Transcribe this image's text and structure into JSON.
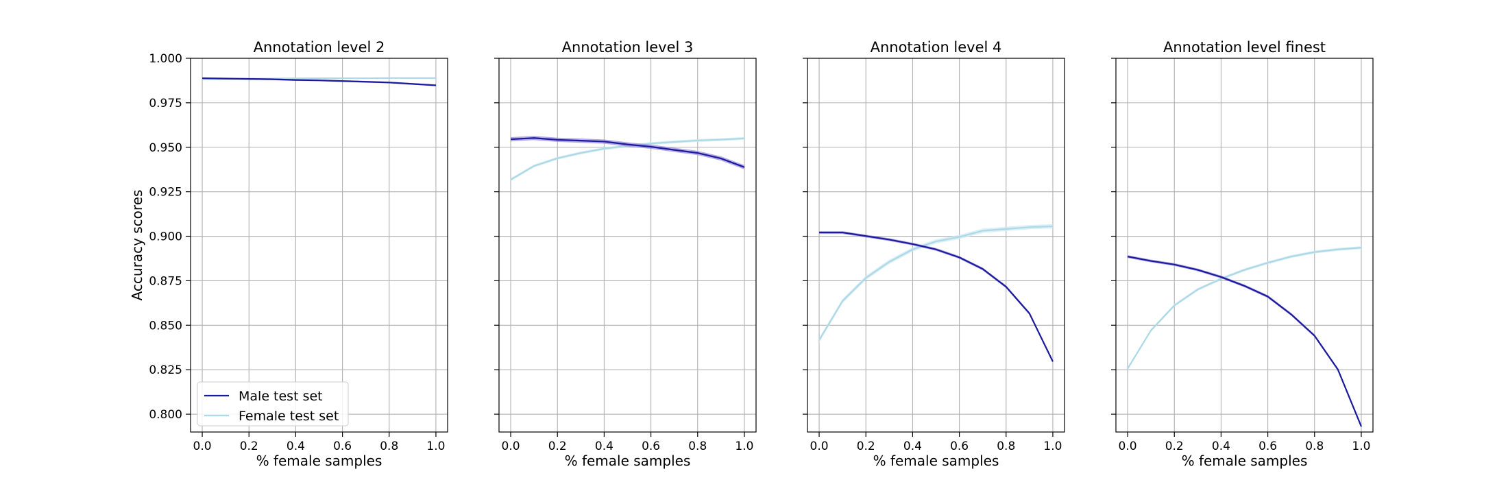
{
  "chart_data": {
    "type": "line",
    "ylabel": "Accuracy scores",
    "xlabel": "% female samples",
    "ylim": [
      0.79,
      1.0
    ],
    "xlim": [
      -0.05,
      1.05
    ],
    "x_ticks": [
      "0.0",
      "0.2",
      "0.4",
      "0.6",
      "0.8",
      "1.0"
    ],
    "y_ticks": [
      "0.800",
      "0.825",
      "0.850",
      "0.875",
      "0.900",
      "0.925",
      "0.950",
      "0.975",
      "1.000"
    ],
    "grid": true,
    "shared_y": true,
    "legend": {
      "placement": "lower-left of first panel",
      "entries": [
        "Male test set",
        "Female test set"
      ]
    },
    "series_colors": {
      "Male test set": "#1a1a9c",
      "Female test set": "#add8e6"
    },
    "band_colors": {
      "Male test set": "#9f8fdd",
      "Female test set": "#cfe9f3"
    },
    "x": [
      0.0,
      0.1,
      0.2,
      0.3,
      0.4,
      0.5,
      0.6,
      0.7,
      0.8,
      0.9,
      1.0
    ],
    "panels": [
      {
        "title": "Annotation level 2",
        "series": [
          {
            "name": "Male test set",
            "values": [
              0.9888,
              0.9886,
              0.9884,
              0.9882,
              0.9878,
              0.9876,
              0.9872,
              0.9868,
              0.9864,
              0.9856,
              0.9848
            ],
            "band": 0.0005
          },
          {
            "name": "Female test set",
            "values": [
              0.9882,
              0.9884,
              0.9885,
              0.9886,
              0.9887,
              0.9888,
              0.9888,
              0.9888,
              0.9889,
              0.9889,
              0.9889
            ],
            "band": 0.0004
          }
        ]
      },
      {
        "title": "Annotation level 3",
        "series": [
          {
            "name": "Male test set",
            "values": [
              0.9545,
              0.9552,
              0.9542,
              0.9537,
              0.9532,
              0.9516,
              0.9503,
              0.9485,
              0.9468,
              0.9437,
              0.9388
            ],
            "band": 0.0012
          },
          {
            "name": "Female test set",
            "values": [
              0.9318,
              0.9395,
              0.9438,
              0.9468,
              0.9492,
              0.9508,
              0.9521,
              0.953,
              0.9538,
              0.9543,
              0.955
            ],
            "band": 0.0008
          }
        ]
      },
      {
        "title": "Annotation level 4",
        "series": [
          {
            "name": "Male test set",
            "values": [
              0.9021,
              0.9021,
              0.9001,
              0.8981,
              0.8956,
              0.8926,
              0.8881,
              0.8816,
              0.8716,
              0.8566,
              0.8296
            ],
            "band": 0.0008
          },
          {
            "name": "Female test set",
            "values": [
              0.8416,
              0.8636,
              0.8766,
              0.8856,
              0.8926,
              0.8971,
              0.8996,
              0.9031,
              0.9041,
              0.9051,
              0.9056
            ],
            "band": 0.0012
          }
        ]
      },
      {
        "title": "Annotation level finest",
        "series": [
          {
            "name": "Male test set",
            "values": [
              0.8886,
              0.8861,
              0.8841,
              0.8811,
              0.8771,
              0.8721,
              0.8661,
              0.8561,
              0.8441,
              0.8251,
              0.7931
            ],
            "band": 0.0008
          },
          {
            "name": "Female test set",
            "values": [
              0.8256,
              0.8471,
              0.8611,
              0.8701,
              0.8761,
              0.8811,
              0.8851,
              0.8886,
              0.8911,
              0.8926,
              0.8936
            ],
            "band": 0.0008
          }
        ]
      }
    ]
  }
}
